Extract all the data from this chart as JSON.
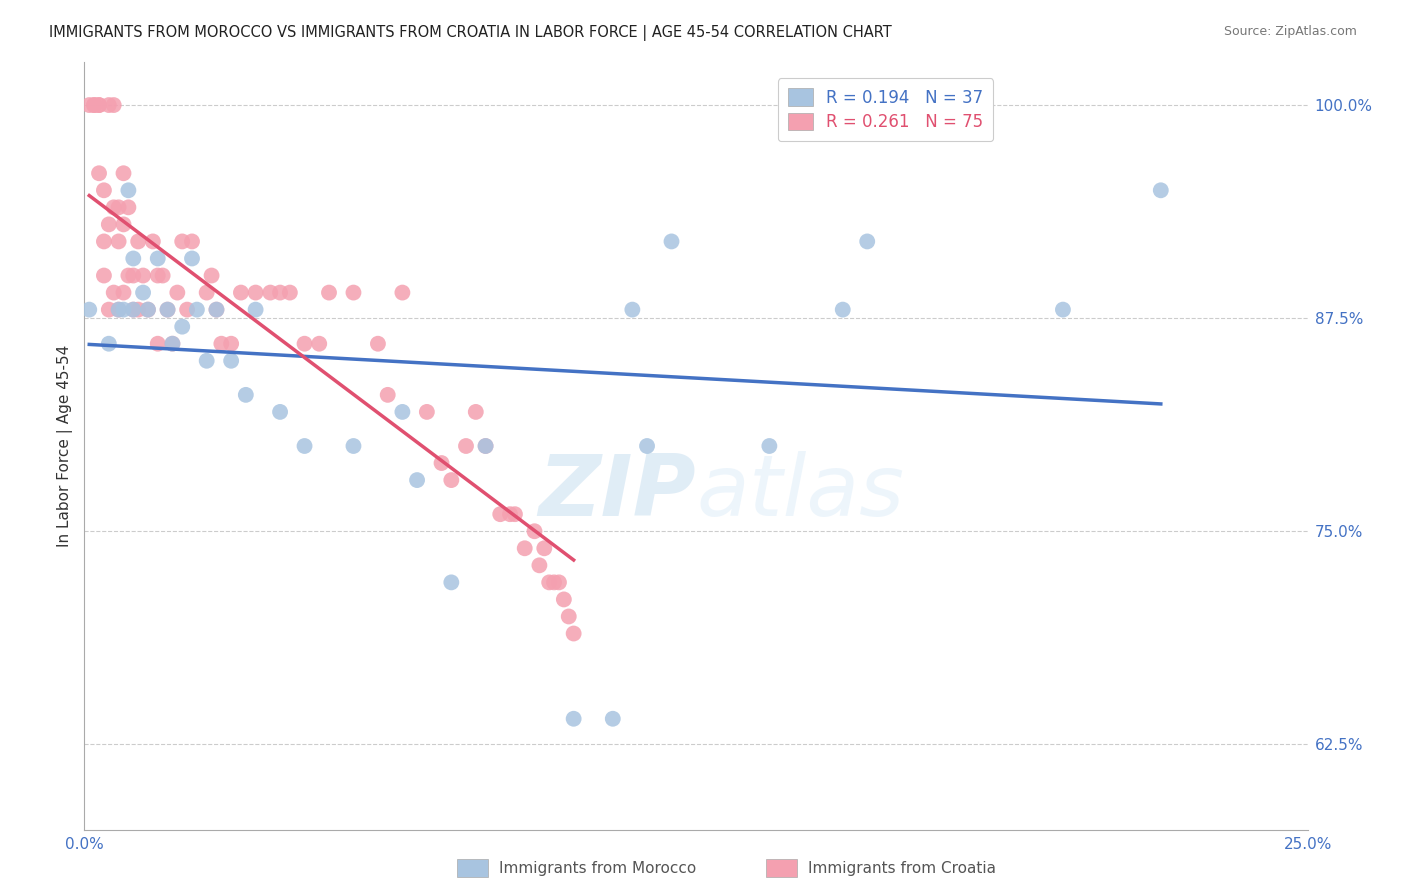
{
  "title": "IMMIGRANTS FROM MOROCCO VS IMMIGRANTS FROM CROATIA IN LABOR FORCE | AGE 45-54 CORRELATION CHART",
  "source": "Source: ZipAtlas.com",
  "ylabel": "In Labor Force | Age 45-54",
  "xlim": [
    0.0,
    0.25
  ],
  "ylim": [
    0.575,
    1.025
  ],
  "yticks": [
    0.625,
    0.75,
    0.875,
    1.0
  ],
  "ytick_labels": [
    "62.5%",
    "75.0%",
    "87.5%",
    "100.0%"
  ],
  "xticks": [
    0.0,
    0.05,
    0.1,
    0.15,
    0.2,
    0.25
  ],
  "xtick_labels": [
    "0.0%",
    "",
    "",
    "",
    "",
    "25.0%"
  ],
  "morocco_color": "#a8c4e0",
  "croatia_color": "#f4a0b0",
  "morocco_line_color": "#4472c4",
  "croatia_line_color": "#e05070",
  "morocco_R": 0.194,
  "morocco_N": 37,
  "croatia_R": 0.261,
  "croatia_N": 75,
  "legend_morocco_label": "Immigrants from Morocco",
  "legend_croatia_label": "Immigrants from Croatia",
  "watermark_zip": "ZIP",
  "watermark_atlas": "atlas",
  "title_fontsize": 11,
  "axis_color": "#4472c4",
  "morocco_x": [
    0.001,
    0.005,
    0.007,
    0.008,
    0.009,
    0.01,
    0.01,
    0.012,
    0.013,
    0.015,
    0.017,
    0.018,
    0.02,
    0.022,
    0.023,
    0.025,
    0.027,
    0.03,
    0.033,
    0.035,
    0.04,
    0.045,
    0.055,
    0.065,
    0.068,
    0.075,
    0.082,
    0.1,
    0.108,
    0.112,
    0.115,
    0.12,
    0.14,
    0.155,
    0.16,
    0.2,
    0.22
  ],
  "morocco_y": [
    0.88,
    0.86,
    0.88,
    0.88,
    0.95,
    0.91,
    0.88,
    0.89,
    0.88,
    0.91,
    0.88,
    0.86,
    0.87,
    0.91,
    0.88,
    0.85,
    0.88,
    0.85,
    0.83,
    0.88,
    0.82,
    0.8,
    0.8,
    0.82,
    0.78,
    0.72,
    0.8,
    0.64,
    0.64,
    0.88,
    0.8,
    0.92,
    0.8,
    0.88,
    0.92,
    0.88,
    0.95
  ],
  "croatia_x": [
    0.001,
    0.002,
    0.002,
    0.003,
    0.003,
    0.003,
    0.004,
    0.004,
    0.004,
    0.005,
    0.005,
    0.005,
    0.006,
    0.006,
    0.006,
    0.007,
    0.007,
    0.007,
    0.008,
    0.008,
    0.008,
    0.009,
    0.009,
    0.01,
    0.01,
    0.011,
    0.011,
    0.012,
    0.013,
    0.014,
    0.015,
    0.015,
    0.016,
    0.017,
    0.018,
    0.019,
    0.02,
    0.021,
    0.022,
    0.025,
    0.026,
    0.027,
    0.028,
    0.03,
    0.032,
    0.035,
    0.038,
    0.04,
    0.042,
    0.045,
    0.048,
    0.05,
    0.055,
    0.06,
    0.062,
    0.065,
    0.07,
    0.073,
    0.075,
    0.078,
    0.08,
    0.082,
    0.085,
    0.087,
    0.088,
    0.09,
    0.092,
    0.093,
    0.094,
    0.095,
    0.096,
    0.097,
    0.098,
    0.099,
    0.1
  ],
  "croatia_y": [
    1.0,
    1.0,
    1.0,
    1.0,
    0.96,
    1.0,
    0.92,
    0.95,
    0.9,
    1.0,
    0.93,
    0.88,
    1.0,
    0.94,
    0.89,
    0.94,
    0.92,
    0.88,
    0.96,
    0.93,
    0.89,
    0.94,
    0.9,
    0.9,
    0.88,
    0.92,
    0.88,
    0.9,
    0.88,
    0.92,
    0.9,
    0.86,
    0.9,
    0.88,
    0.86,
    0.89,
    0.92,
    0.88,
    0.92,
    0.89,
    0.9,
    0.88,
    0.86,
    0.86,
    0.89,
    0.89,
    0.89,
    0.89,
    0.89,
    0.86,
    0.86,
    0.89,
    0.89,
    0.86,
    0.83,
    0.89,
    0.82,
    0.79,
    0.78,
    0.8,
    0.82,
    0.8,
    0.76,
    0.76,
    0.76,
    0.74,
    0.75,
    0.73,
    0.74,
    0.72,
    0.72,
    0.72,
    0.71,
    0.7,
    0.69
  ]
}
